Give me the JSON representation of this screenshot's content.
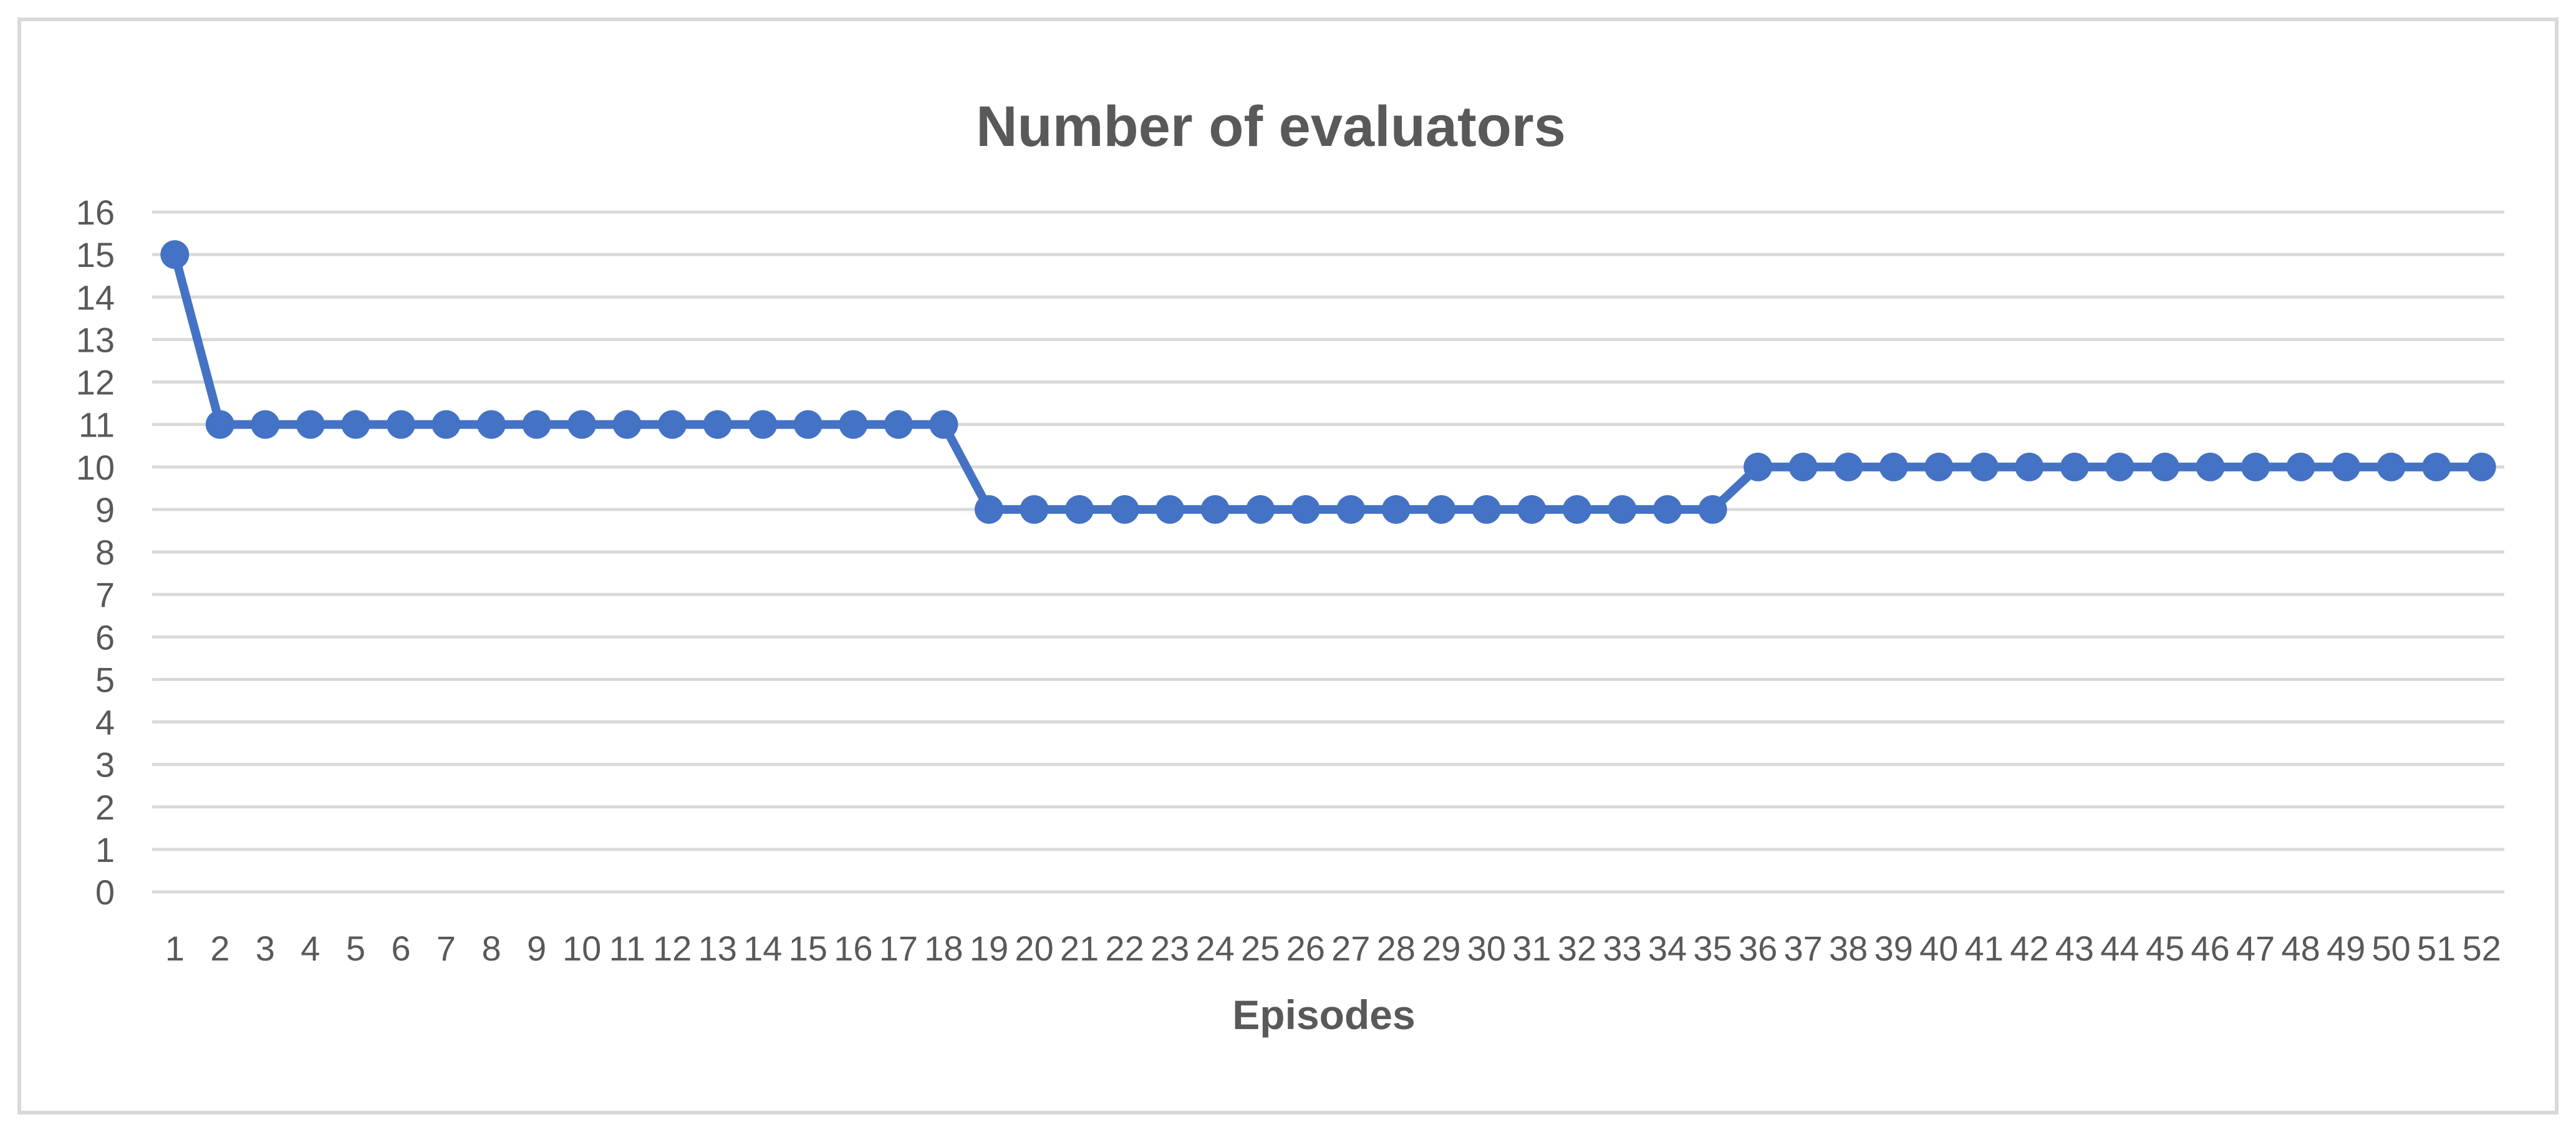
{
  "chart_data": {
    "type": "line",
    "title": "Number of evaluators",
    "xlabel": "Episodes",
    "ylabel": "",
    "categories": [
      "1",
      "2",
      "3",
      "4",
      "5",
      "6",
      "7",
      "8",
      "9",
      "10",
      "11",
      "12",
      "13",
      "14",
      "15",
      "16",
      "17",
      "18",
      "19",
      "20",
      "21",
      "22",
      "23",
      "24",
      "25",
      "26",
      "27",
      "28",
      "29",
      "30",
      "31",
      "32",
      "33",
      "34",
      "35",
      "36",
      "37",
      "38",
      "39",
      "40",
      "41",
      "42",
      "43",
      "44",
      "45",
      "46",
      "47",
      "48",
      "49",
      "50",
      "51",
      "52"
    ],
    "series": [
      {
        "values": [
          15,
          11,
          11,
          11,
          11,
          11,
          11,
          11,
          11,
          11,
          11,
          11,
          11,
          11,
          11,
          11,
          11,
          11,
          9,
          9,
          9,
          9,
          9,
          9,
          9,
          9,
          9,
          9,
          9,
          9,
          9,
          9,
          9,
          9,
          9,
          10,
          10,
          10,
          10,
          10,
          10,
          10,
          10,
          10,
          10,
          10,
          10,
          10,
          10,
          10,
          10,
          10
        ],
        "color": "#4472c4"
      }
    ],
    "ylim": [
      0,
      16
    ],
    "yticks": [
      "0",
      "1",
      "2",
      "3",
      "4",
      "5",
      "6",
      "7",
      "8",
      "9",
      "10",
      "11",
      "12",
      "13",
      "14",
      "15",
      "16"
    ],
    "grid": true,
    "legend": "none",
    "markers": true
  }
}
